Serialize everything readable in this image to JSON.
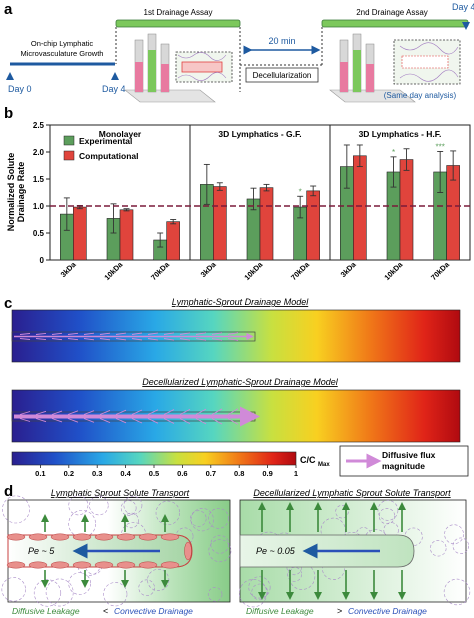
{
  "panel_a": {
    "panel_letter": "a",
    "day0": "Day 0",
    "day4_left": "Day 4",
    "day4_right": "Day 4",
    "growth_line1": "On-chip Lymphatic",
    "growth_line2": "Microvasculature Growth",
    "assay1": "1st Drainage Assay",
    "assay2": "2nd Drainage Assay",
    "interval": "20 min",
    "decell": "Decellularization",
    "same_day": "(Same day analysis)"
  },
  "panel_b": {
    "panel_letter": "b",
    "chart_data": {
      "type": "bar",
      "ylabel": "Normalized Solute Drainage Rate",
      "ylim": [
        0,
        2.5
      ],
      "yticks": [
        "0",
        "0.5",
        "1.0",
        "1.5",
        "2.0",
        "2.5"
      ],
      "reference_line": 1.0,
      "legend": [
        "Experimental",
        "Computational"
      ],
      "groups": [
        "Monolayer",
        "3D Lymphatics - G.F.",
        "3D Lymphatics - H.F."
      ],
      "categories": [
        "3kDa",
        "10kDa",
        "70kDa",
        "3kDa",
        "10kDa",
        "70kDa",
        "3kDa",
        "10kDa",
        "70kDa"
      ],
      "series": [
        {
          "name": "Experimental",
          "values": [
            0.85,
            0.77,
            0.37,
            1.4,
            1.13,
            0.98,
            1.73,
            1.63,
            1.63
          ],
          "errors": [
            0.3,
            0.27,
            0.13,
            0.37,
            0.2,
            0.2,
            0.4,
            0.28,
            0.38
          ]
        },
        {
          "name": "Computational",
          "values": [
            0.98,
            0.93,
            0.71,
            1.36,
            1.34,
            1.28,
            1.93,
            1.86,
            1.75
          ],
          "errors": [
            0.03,
            0.02,
            0.04,
            0.07,
            0.06,
            0.09,
            0.2,
            0.2,
            0.27
          ]
        }
      ],
      "significance": [
        "",
        "",
        "",
        "",
        "",
        "*",
        "",
        "*",
        "***"
      ]
    }
  },
  "panel_c": {
    "panel_letter": "c",
    "title1": "Lymphatic-Sprout Drainage Model",
    "title2": "Decellularized Lymphatic-Sprout Drainage Model",
    "colorbar_ticks": [
      "0.1",
      "0.2",
      "0.3",
      "0.4",
      "0.5",
      "0.6",
      "0.7",
      "0.8",
      "0.9",
      "1"
    ],
    "colorbar_label": "C/C",
    "colorbar_sub": "Max",
    "legend_line1": "Diffusive flux",
    "legend_line2": "magnitude"
  },
  "panel_d": {
    "panel_letter": "d",
    "title_left": "Lymphatic Sprout Solute Transport",
    "title_right": "Decellularized Lymphatic Sprout Solute Transport",
    "pe_left": "Pe ~ 5",
    "pe_right": "Pe ~ 0.05",
    "caption_left_a": "Diffusive Leakage",
    "caption_left_op": "<",
    "caption_left_b": "Convective Drainage",
    "caption_right_a": "Diffusive Leakage",
    "caption_right_op": ">",
    "caption_right_b": "Convective Drainage"
  },
  "colors": {
    "experimental": "#5c9e5c",
    "computational": "#e0443c",
    "timeline": "#1e5aa0",
    "assay_bar": "#7cc85c",
    "flux_arrow": "#d08ad8",
    "drain_arrow": "#2a50b8",
    "leak_arrow": "#3c8a3c"
  }
}
